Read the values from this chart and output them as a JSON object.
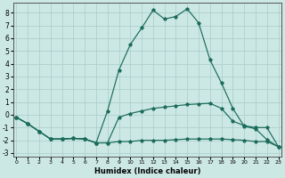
{
  "xlabel": "Humidex (Indice chaleur)",
  "bg_color": "#cce8e5",
  "grid_color": "#aed0cc",
  "line_color": "#1a6b5a",
  "xlim": [
    -0.3,
    23.3
  ],
  "ylim": [
    -3.3,
    8.8
  ],
  "yticks": [
    -3,
    -2,
    -1,
    0,
    1,
    2,
    3,
    4,
    5,
    6,
    7,
    8
  ],
  "xticks": [
    0,
    1,
    2,
    3,
    4,
    5,
    6,
    7,
    8,
    9,
    10,
    11,
    12,
    13,
    14,
    15,
    16,
    17,
    18,
    19,
    20,
    21,
    22,
    23
  ],
  "line_peak_x": [
    0,
    1,
    2,
    3,
    4,
    5,
    6,
    7,
    8,
    9,
    10,
    11,
    12,
    13,
    14,
    15,
    16,
    17,
    18,
    19,
    20,
    21,
    22,
    23
  ],
  "line_peak_y": [
    -0.2,
    -0.7,
    -1.3,
    -1.9,
    -1.9,
    -1.85,
    -1.9,
    -2.2,
    0.3,
    3.5,
    5.5,
    6.8,
    8.2,
    7.5,
    7.7,
    8.3,
    7.2,
    4.3,
    2.5,
    0.5,
    -0.9,
    -1.1,
    -1.95,
    -2.5
  ],
  "line_mid_x": [
    0,
    1,
    2,
    3,
    4,
    5,
    6,
    7,
    8,
    9,
    10,
    11,
    12,
    13,
    14,
    15,
    16,
    17,
    18,
    19,
    20,
    21,
    22,
    23
  ],
  "line_mid_y": [
    -0.2,
    -0.7,
    -1.3,
    -1.9,
    -1.9,
    -1.85,
    -1.9,
    -2.2,
    -2.2,
    -0.2,
    0.1,
    0.3,
    0.5,
    0.6,
    0.7,
    0.8,
    0.85,
    0.9,
    0.5,
    -0.5,
    -0.85,
    -1.0,
    -1.0,
    -2.5
  ],
  "line_low_x": [
    0,
    1,
    2,
    3,
    4,
    5,
    6,
    7,
    8,
    9,
    10,
    11,
    12,
    13,
    14,
    15,
    16,
    17,
    18,
    19,
    20,
    21,
    22,
    23
  ],
  "line_low_y": [
    -0.2,
    -0.7,
    -1.3,
    -1.9,
    -1.9,
    -1.85,
    -1.9,
    -2.2,
    -2.2,
    -2.1,
    -2.1,
    -2.0,
    -2.0,
    -2.0,
    -1.95,
    -1.9,
    -1.9,
    -1.9,
    -1.9,
    -1.95,
    -2.0,
    -2.1,
    -2.1,
    -2.5
  ]
}
